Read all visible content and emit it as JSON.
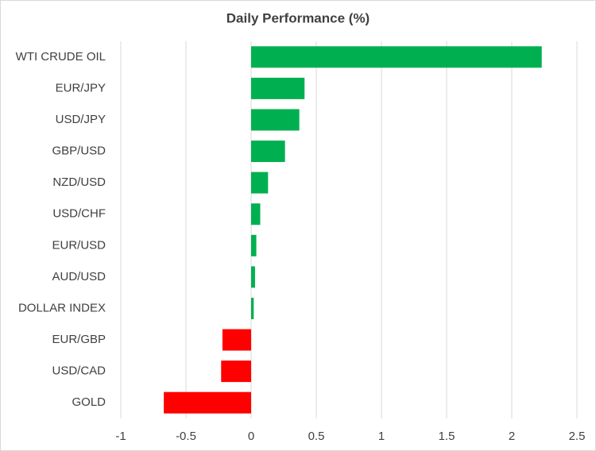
{
  "chart_data": {
    "type": "hbar",
    "title": "Daily Performance (%)",
    "categories": [
      "WTI CRUDE OIL",
      "EUR/JPY",
      "USD/JPY",
      "GBP/USD",
      "NZD/USD",
      "USD/CHF",
      "EUR/USD",
      "AUD/USD",
      "DOLLAR INDEX",
      "EUR/GBP",
      "USD/CAD",
      "GOLD"
    ],
    "values": [
      2.23,
      0.41,
      0.37,
      0.26,
      0.13,
      0.07,
      0.04,
      0.03,
      0.02,
      -0.22,
      -0.23,
      -0.67
    ],
    "positive_color": "#00b050",
    "negative_color": "#ff0000",
    "xlim": [
      -1,
      2.5
    ],
    "xticks": [
      -1,
      -0.5,
      0,
      0.5,
      1,
      1.5,
      2,
      2.5
    ],
    "grid": true
  }
}
